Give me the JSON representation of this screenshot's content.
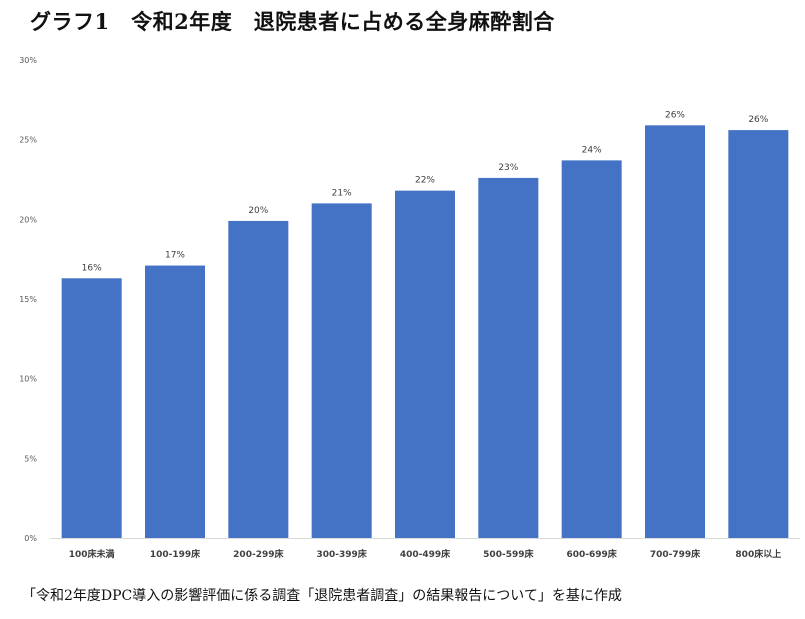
{
  "chart_data": {
    "type": "bar",
    "title": "グラフ1　令和2年度　退院患者に占める全身麻酔割合",
    "categories": [
      "100床未満",
      "100-199床",
      "200-299床",
      "300-399床",
      "400-499床",
      "500-599床",
      "600-699床",
      "700-799床",
      "800床以上"
    ],
    "values": [
      16.3,
      17.1,
      19.9,
      21.0,
      21.8,
      22.6,
      23.7,
      25.9,
      25.6
    ],
    "data_labels": [
      "16%",
      "17%",
      "20%",
      "21%",
      "22%",
      "23%",
      "24%",
      "26%",
      "26%"
    ],
    "y_ticks": [
      0,
      5,
      10,
      15,
      20,
      25,
      30
    ],
    "y_tick_labels": [
      "0%",
      "5%",
      "10%",
      "15%",
      "20%",
      "25%",
      "30%"
    ],
    "ylim": [
      0,
      30
    ],
    "grid": false,
    "legend": "none",
    "bar_color": "#4472c4"
  },
  "source_note": "「令和2年度DPC導入の影響評価に係る調査「退院患者調査」の結果報告について」を基に作成"
}
